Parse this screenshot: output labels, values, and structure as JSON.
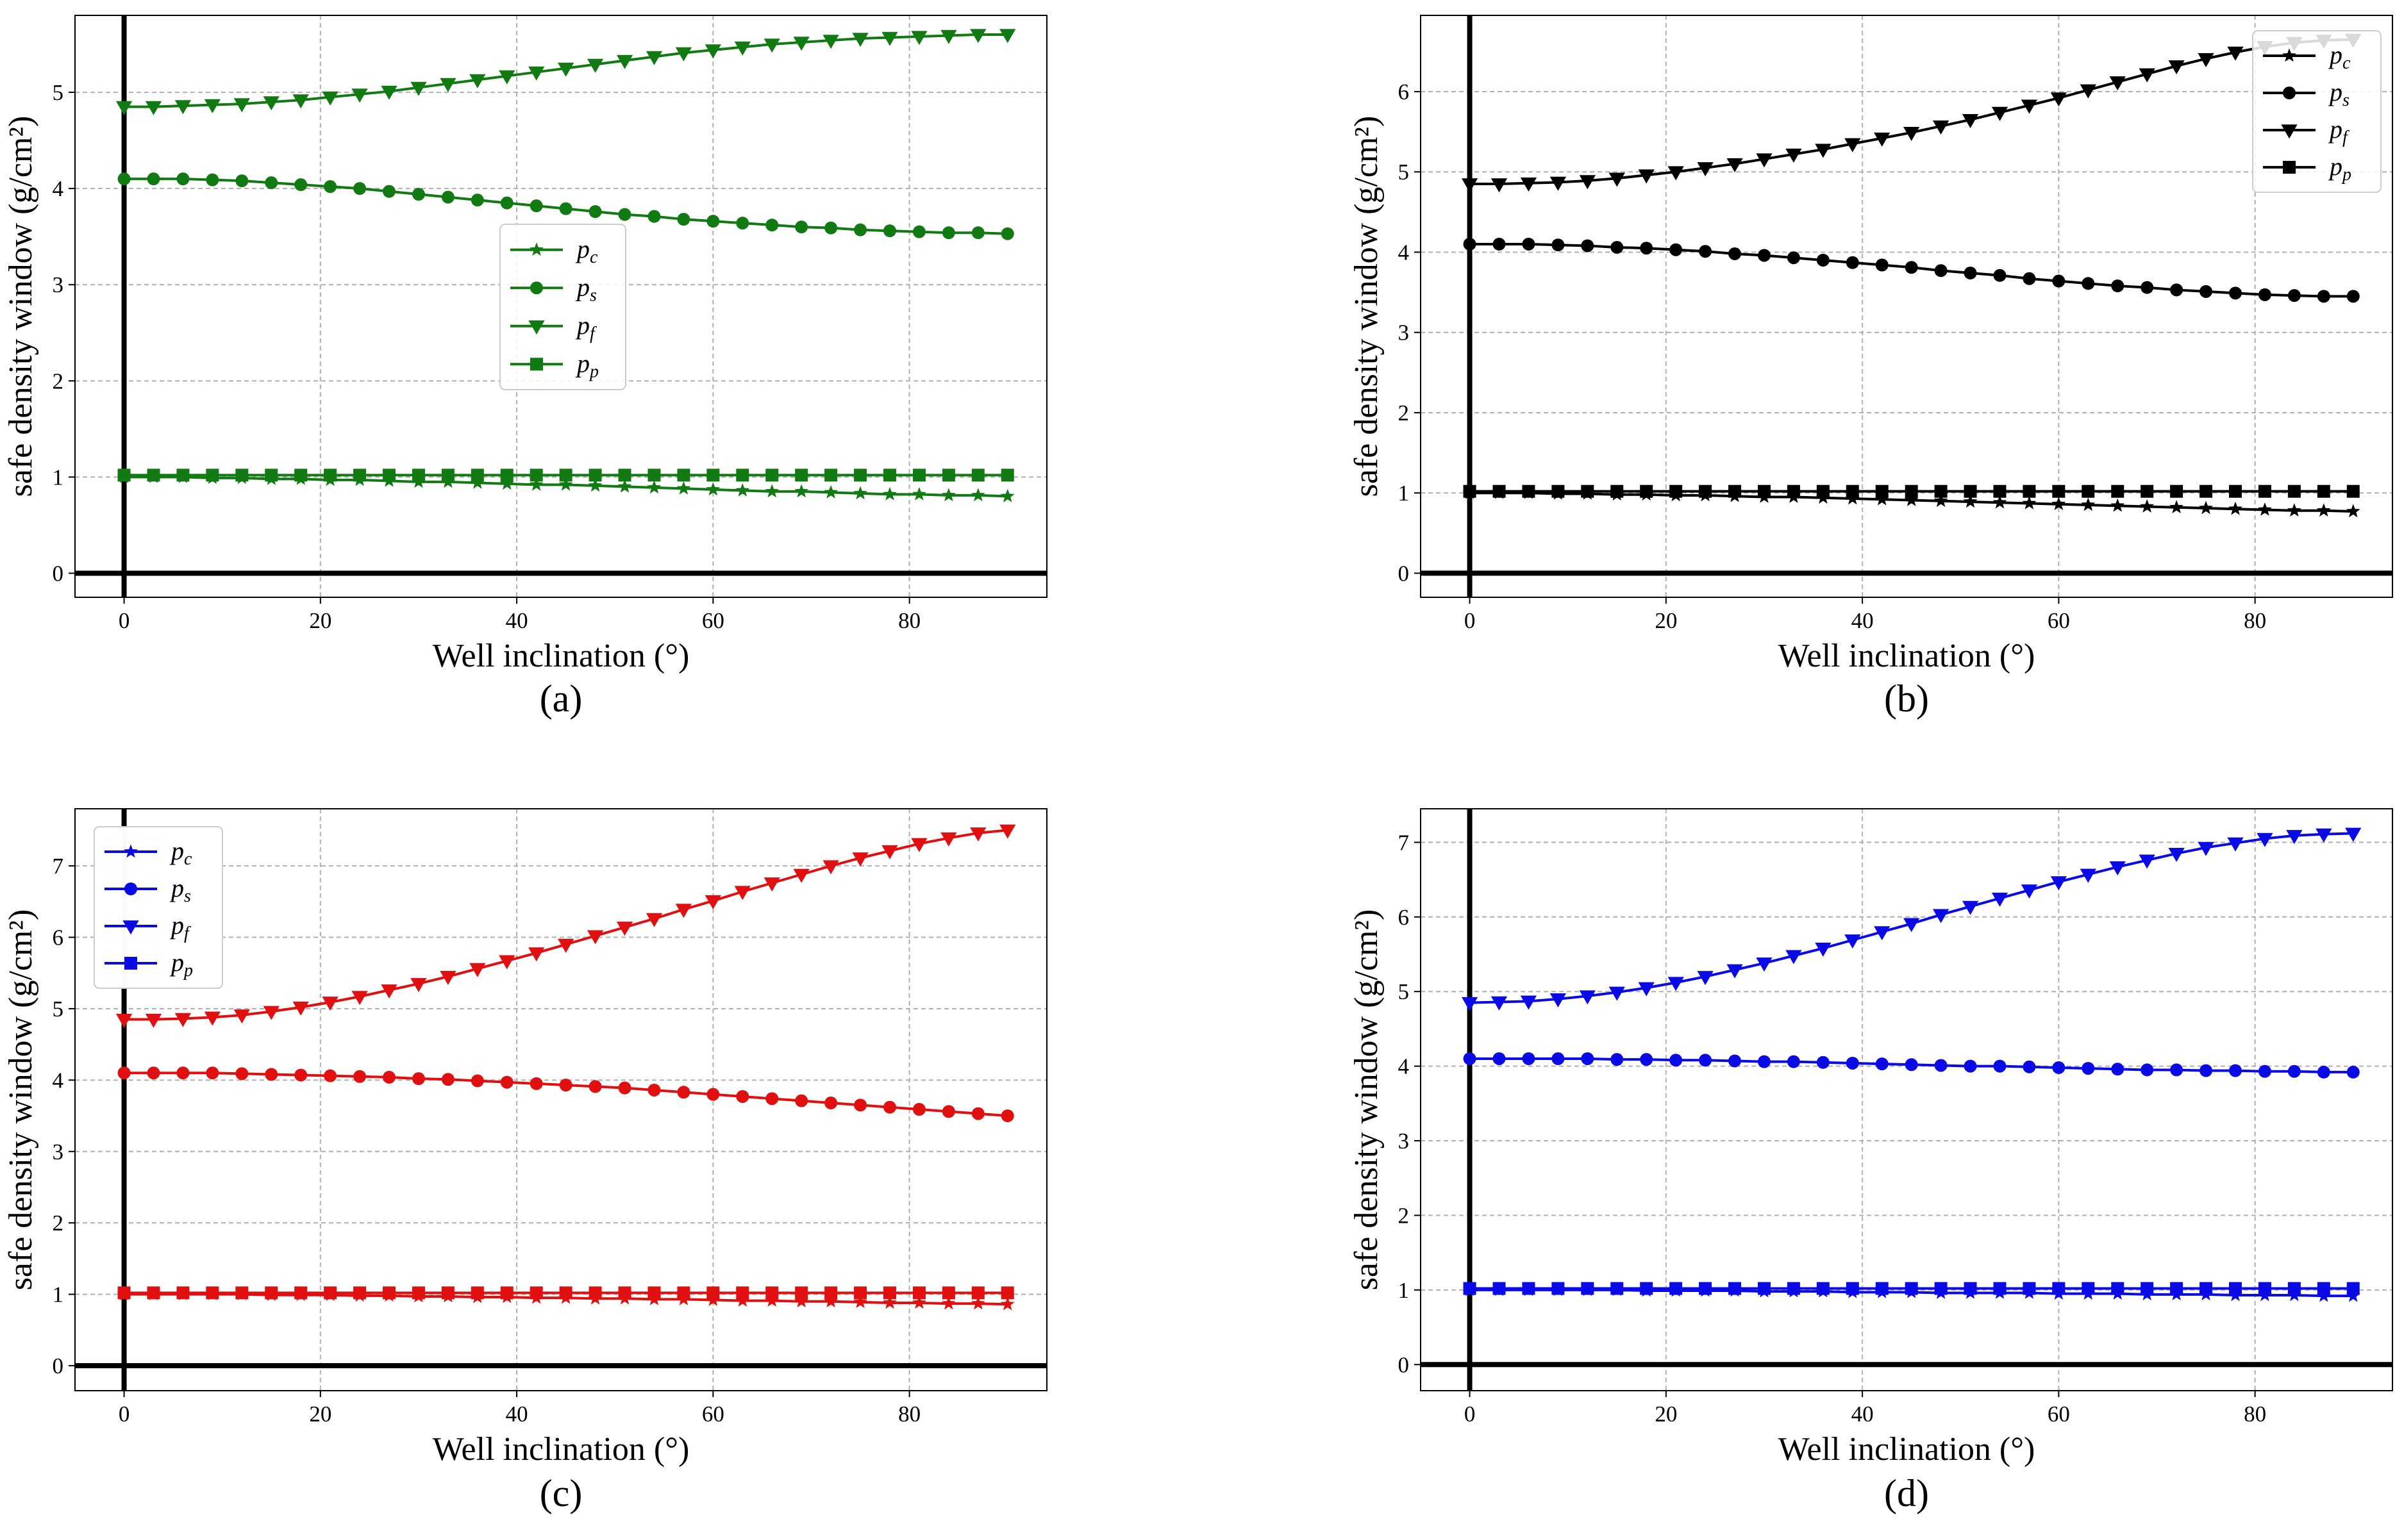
{
  "chart_data": [
    {
      "panel_label": "(a)",
      "type": "line",
      "color": "#127a12",
      "xlabel": "Well inclination (°)",
      "ylabel": "safe density window (g/cm²)",
      "xlim": [
        -5,
        94
      ],
      "ylim": [
        -0.25,
        5.8
      ],
      "xticks": [
        0,
        20,
        40,
        60,
        80
      ],
      "yticks": [
        0,
        1,
        2,
        3,
        4,
        5
      ],
      "legend_position": "center",
      "x": [
        0,
        3,
        6,
        9,
        12,
        15,
        18,
        21,
        24,
        27,
        30,
        33,
        36,
        39,
        42,
        45,
        48,
        51,
        54,
        57,
        60,
        63,
        66,
        69,
        72,
        75,
        78,
        81,
        84,
        87,
        90
      ],
      "series": [
        {
          "name": "p_c",
          "label_main": "p",
          "label_sub": "c",
          "marker": "star",
          "values": [
            1.0,
            1.0,
            1.0,
            0.99,
            0.99,
            0.98,
            0.98,
            0.97,
            0.97,
            0.96,
            0.95,
            0.95,
            0.94,
            0.93,
            0.92,
            0.92,
            0.91,
            0.9,
            0.89,
            0.88,
            0.87,
            0.86,
            0.85,
            0.85,
            0.84,
            0.83,
            0.82,
            0.82,
            0.81,
            0.81,
            0.8
          ]
        },
        {
          "name": "p_s",
          "label_main": "p",
          "label_sub": "s",
          "marker": "circle",
          "values": [
            4.1,
            4.1,
            4.1,
            4.09,
            4.08,
            4.06,
            4.04,
            4.02,
            4.0,
            3.97,
            3.94,
            3.91,
            3.88,
            3.85,
            3.82,
            3.79,
            3.76,
            3.73,
            3.71,
            3.68,
            3.66,
            3.64,
            3.62,
            3.6,
            3.59,
            3.57,
            3.56,
            3.55,
            3.54,
            3.54,
            3.53
          ]
        },
        {
          "name": "p_f",
          "label_main": "p",
          "label_sub": "f",
          "marker": "triangle-down",
          "values": [
            4.85,
            4.85,
            4.86,
            4.87,
            4.88,
            4.9,
            4.92,
            4.95,
            4.98,
            5.01,
            5.05,
            5.09,
            5.13,
            5.17,
            5.21,
            5.25,
            5.29,
            5.33,
            5.37,
            5.41,
            5.44,
            5.47,
            5.5,
            5.52,
            5.54,
            5.56,
            5.57,
            5.58,
            5.59,
            5.6,
            5.6
          ]
        },
        {
          "name": "p_p",
          "label_main": "p",
          "label_sub": "p",
          "marker": "square",
          "values": [
            1.02,
            1.02,
            1.02,
            1.02,
            1.02,
            1.02,
            1.02,
            1.02,
            1.02,
            1.02,
            1.02,
            1.02,
            1.02,
            1.02,
            1.02,
            1.02,
            1.02,
            1.02,
            1.02,
            1.02,
            1.02,
            1.02,
            1.02,
            1.02,
            1.02,
            1.02,
            1.02,
            1.02,
            1.02,
            1.02,
            1.02
          ]
        }
      ]
    },
    {
      "panel_label": "(b)",
      "type": "line",
      "color": "#000000",
      "xlabel": "Well inclination (°)",
      "ylabel": "safe density window (g/cm²)",
      "xlim": [
        -5,
        94
      ],
      "ylim": [
        -0.3,
        6.95
      ],
      "xticks": [
        0,
        20,
        40,
        60,
        80
      ],
      "yticks": [
        0,
        1,
        2,
        3,
        4,
        5,
        6
      ],
      "legend_position": "upper right",
      "x": [
        0,
        3,
        6,
        9,
        12,
        15,
        18,
        21,
        24,
        27,
        30,
        33,
        36,
        39,
        42,
        45,
        48,
        51,
        54,
        57,
        60,
        63,
        66,
        69,
        72,
        75,
        78,
        81,
        84,
        87,
        90
      ],
      "series": [
        {
          "name": "p_c",
          "label_main": "p",
          "label_sub": "c",
          "marker": "star",
          "values": [
            1.0,
            1.0,
            1.0,
            0.99,
            0.99,
            0.98,
            0.98,
            0.97,
            0.97,
            0.96,
            0.95,
            0.95,
            0.94,
            0.93,
            0.92,
            0.91,
            0.9,
            0.89,
            0.88,
            0.87,
            0.86,
            0.85,
            0.84,
            0.83,
            0.82,
            0.81,
            0.8,
            0.79,
            0.78,
            0.78,
            0.77
          ]
        },
        {
          "name": "p_s",
          "label_main": "p",
          "label_sub": "s",
          "marker": "circle",
          "values": [
            4.1,
            4.1,
            4.1,
            4.09,
            4.08,
            4.06,
            4.05,
            4.03,
            4.01,
            3.98,
            3.96,
            3.93,
            3.9,
            3.87,
            3.84,
            3.81,
            3.77,
            3.74,
            3.71,
            3.67,
            3.64,
            3.61,
            3.58,
            3.56,
            3.53,
            3.51,
            3.49,
            3.47,
            3.46,
            3.45,
            3.45
          ]
        },
        {
          "name": "p_f",
          "label_main": "p",
          "label_sub": "f",
          "marker": "triangle-down",
          "values": [
            4.85,
            4.85,
            4.86,
            4.87,
            4.89,
            4.92,
            4.96,
            5.0,
            5.05,
            5.1,
            5.16,
            5.22,
            5.28,
            5.35,
            5.42,
            5.49,
            5.57,
            5.65,
            5.74,
            5.83,
            5.92,
            6.02,
            6.12,
            6.22,
            6.32,
            6.41,
            6.49,
            6.56,
            6.61,
            6.64,
            6.65
          ]
        },
        {
          "name": "p_p",
          "label_main": "p",
          "label_sub": "p",
          "marker": "square",
          "values": [
            1.02,
            1.02,
            1.02,
            1.02,
            1.02,
            1.02,
            1.02,
            1.02,
            1.02,
            1.02,
            1.02,
            1.02,
            1.02,
            1.02,
            1.02,
            1.02,
            1.02,
            1.02,
            1.02,
            1.02,
            1.02,
            1.02,
            1.02,
            1.02,
            1.02,
            1.02,
            1.02,
            1.02,
            1.02,
            1.02,
            1.02
          ]
        }
      ]
    },
    {
      "panel_label": "(c)",
      "type": "line",
      "color": "#e01010",
      "xlabel": "Well inclination (°)",
      "ylabel": "safe density window (g/cm²)",
      "xlim": [
        -5,
        94
      ],
      "ylim": [
        -0.35,
        7.8
      ],
      "xticks": [
        0,
        20,
        40,
        60,
        80
      ],
      "yticks": [
        0,
        1,
        2,
        3,
        4,
        5,
        6,
        7
      ],
      "legend_position": "upper left",
      "x": [
        0,
        3,
        6,
        9,
        12,
        15,
        18,
        21,
        24,
        27,
        30,
        33,
        36,
        39,
        42,
        45,
        48,
        51,
        54,
        57,
        60,
        63,
        66,
        69,
        72,
        75,
        78,
        81,
        84,
        87,
        90
      ],
      "series": [
        {
          "name": "p_c",
          "label_main": "p",
          "label_sub": "c",
          "marker": "star",
          "values": [
            1.0,
            1.0,
            1.0,
            1.0,
            1.0,
            0.99,
            0.99,
            0.99,
            0.98,
            0.98,
            0.97,
            0.97,
            0.96,
            0.96,
            0.95,
            0.95,
            0.94,
            0.94,
            0.93,
            0.93,
            0.92,
            0.91,
            0.91,
            0.9,
            0.9,
            0.89,
            0.88,
            0.88,
            0.87,
            0.87,
            0.86
          ]
        },
        {
          "name": "p_s",
          "label_main": "p",
          "label_sub": "s",
          "marker": "circle",
          "values": [
            4.1,
            4.1,
            4.1,
            4.1,
            4.09,
            4.08,
            4.07,
            4.06,
            4.05,
            4.04,
            4.02,
            4.01,
            3.99,
            3.97,
            3.95,
            3.93,
            3.91,
            3.89,
            3.86,
            3.83,
            3.8,
            3.77,
            3.74,
            3.71,
            3.68,
            3.65,
            3.62,
            3.59,
            3.56,
            3.53,
            3.5
          ]
        },
        {
          "name": "p_f",
          "label_main": "p",
          "label_sub": "f",
          "marker": "triangle-down",
          "values": [
            4.85,
            4.85,
            4.86,
            4.88,
            4.91,
            4.96,
            5.02,
            5.09,
            5.17,
            5.26,
            5.35,
            5.45,
            5.56,
            5.67,
            5.78,
            5.9,
            6.02,
            6.14,
            6.26,
            6.39,
            6.51,
            6.64,
            6.76,
            6.88,
            7.0,
            7.11,
            7.21,
            7.31,
            7.39,
            7.46,
            7.5
          ]
        },
        {
          "name": "p_p",
          "label_main": "p",
          "label_sub": "p",
          "marker": "square",
          "values": [
            1.02,
            1.02,
            1.02,
            1.02,
            1.02,
            1.02,
            1.02,
            1.02,
            1.02,
            1.02,
            1.02,
            1.02,
            1.02,
            1.02,
            1.02,
            1.02,
            1.02,
            1.02,
            1.02,
            1.02,
            1.02,
            1.02,
            1.02,
            1.02,
            1.02,
            1.02,
            1.02,
            1.02,
            1.02,
            1.02,
            1.02
          ]
        }
      ]
    },
    {
      "panel_label": "(d)",
      "type": "line",
      "color": "#0a0ae6",
      "xlabel": "Well inclination (°)",
      "ylabel": "safe density window (g/cm²)",
      "xlim": [
        -5,
        94
      ],
      "ylim": [
        -0.35,
        7.45
      ],
      "xticks": [
        0,
        20,
        40,
        60,
        80
      ],
      "yticks": [
        0,
        1,
        2,
        3,
        4,
        5,
        6,
        7
      ],
      "legend_position": "upper left",
      "x": [
        0,
        3,
        6,
        9,
        12,
        15,
        18,
        21,
        24,
        27,
        30,
        33,
        36,
        39,
        42,
        45,
        48,
        51,
        54,
        57,
        60,
        63,
        66,
        69,
        72,
        75,
        78,
        81,
        84,
        87,
        90
      ],
      "series": [
        {
          "name": "p_c",
          "label_main": "p",
          "label_sub": "c",
          "marker": "star",
          "values": [
            1.0,
            1.0,
            1.0,
            1.0,
            1.0,
            1.0,
            0.99,
            0.99,
            0.99,
            0.99,
            0.98,
            0.98,
            0.98,
            0.97,
            0.97,
            0.97,
            0.96,
            0.96,
            0.96,
            0.96,
            0.95,
            0.95,
            0.95,
            0.94,
            0.94,
            0.94,
            0.93,
            0.93,
            0.93,
            0.92,
            0.92
          ]
        },
        {
          "name": "p_s",
          "label_main": "p",
          "label_sub": "s",
          "marker": "circle",
          "values": [
            4.1,
            4.1,
            4.1,
            4.1,
            4.1,
            4.09,
            4.09,
            4.08,
            4.08,
            4.07,
            4.06,
            4.06,
            4.05,
            4.04,
            4.03,
            4.02,
            4.01,
            4.0,
            4.0,
            3.99,
            3.98,
            3.97,
            3.96,
            3.95,
            3.95,
            3.94,
            3.94,
            3.93,
            3.93,
            3.92,
            3.92
          ]
        },
        {
          "name": "p_f",
          "label_main": "p",
          "label_sub": "f",
          "marker": "triangle-down",
          "values": [
            4.85,
            4.86,
            4.87,
            4.9,
            4.94,
            4.99,
            5.05,
            5.12,
            5.2,
            5.29,
            5.38,
            5.48,
            5.58,
            5.69,
            5.8,
            5.91,
            6.03,
            6.14,
            6.25,
            6.36,
            6.47,
            6.57,
            6.67,
            6.76,
            6.85,
            6.93,
            6.99,
            7.05,
            7.09,
            7.11,
            7.12
          ]
        },
        {
          "name": "p_p",
          "label_main": "p",
          "label_sub": "p",
          "marker": "square",
          "values": [
            1.02,
            1.02,
            1.02,
            1.02,
            1.02,
            1.02,
            1.02,
            1.02,
            1.02,
            1.02,
            1.02,
            1.02,
            1.02,
            1.02,
            1.02,
            1.02,
            1.02,
            1.02,
            1.02,
            1.02,
            1.02,
            1.02,
            1.02,
            1.02,
            1.02,
            1.02,
            1.02,
            1.02,
            1.02,
            1.02,
            1.02
          ]
        }
      ]
    }
  ]
}
